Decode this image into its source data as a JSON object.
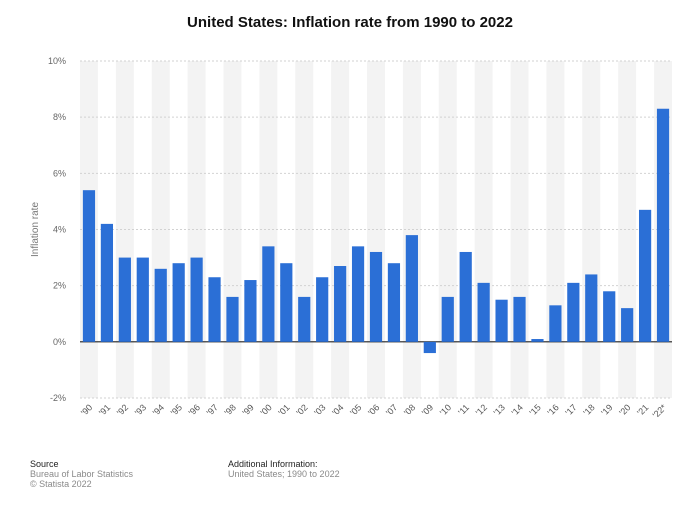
{
  "chart_data": {
    "type": "bar",
    "title": "United States: Inflation rate from 1990 to 2022",
    "ylabel": "Inflation rate",
    "xlabel": "",
    "ylim": [
      -2,
      10
    ],
    "y_ticks": [
      "-2%",
      "0%",
      "2%",
      "4%",
      "6%",
      "8%",
      "10%"
    ],
    "y_tick_values": [
      -2,
      0,
      2,
      4,
      6,
      8,
      10
    ],
    "categories": [
      "'90",
      "'91",
      "'92",
      "'93",
      "'94",
      "'95",
      "'96",
      "'97",
      "'98",
      "'99",
      "'00",
      "'01",
      "'02",
      "'03",
      "'04",
      "'05",
      "'06",
      "'07",
      "'08",
      "'09",
      "'10",
      "'11",
      "'12",
      "'13",
      "'14",
      "'15",
      "'16",
      "'17",
      "'18",
      "'19",
      "'20",
      "'21",
      "'22*"
    ],
    "values": [
      5.4,
      4.2,
      3.0,
      3.0,
      2.6,
      2.8,
      3.0,
      2.3,
      1.6,
      2.2,
      3.4,
      2.8,
      1.6,
      2.3,
      2.7,
      3.4,
      3.2,
      2.8,
      3.8,
      -0.4,
      1.6,
      3.2,
      2.1,
      1.5,
      1.6,
      0.1,
      1.3,
      2.1,
      2.4,
      1.8,
      1.2,
      4.7,
      8.3
    ],
    "bar_color": "#2b6fd6",
    "grid": true,
    "legend": "none"
  },
  "footer": {
    "source_title": "Source",
    "source_lines": [
      "Bureau of Labor Statistics",
      "© Statista 2022"
    ],
    "info_title": "Additional Information:",
    "info_lines": [
      "United States; 1990 to 2022"
    ]
  }
}
